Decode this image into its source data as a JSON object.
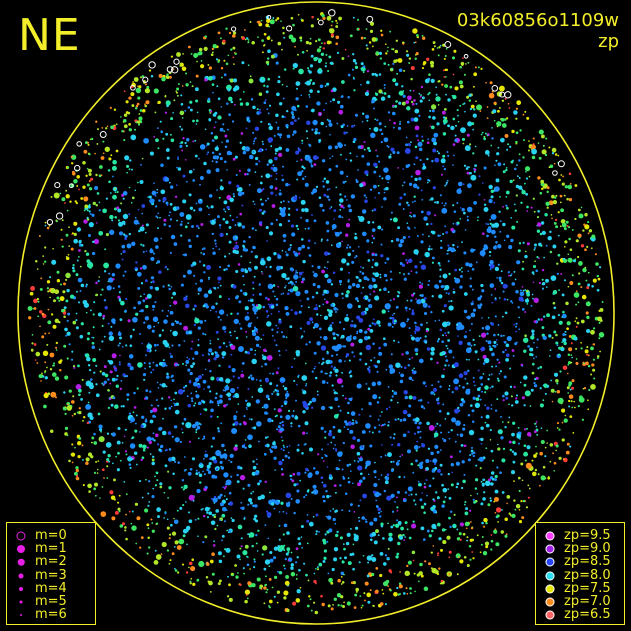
{
  "figure": {
    "corner_label": "NE",
    "exposure_id": "03k60856o1109w",
    "mode_label": "zp",
    "colors": {
      "frame": "#f2ee2a",
      "background": "#000000"
    }
  },
  "magnitude_legend": {
    "items": [
      {
        "label": "m=0",
        "hollow": true,
        "color": "#e61ee6"
      },
      {
        "label": "m=1",
        "hollow": false,
        "color": "#e61ee6"
      },
      {
        "label": "m=2",
        "hollow": false,
        "color": "#e61ee6"
      },
      {
        "label": "m=3",
        "hollow": false,
        "color": "#e61ee6"
      },
      {
        "label": "m=4",
        "hollow": false,
        "color": "#e61ee6"
      },
      {
        "label": "m=5",
        "hollow": false,
        "color": "#e61ee6"
      },
      {
        "label": "m=6",
        "hollow": false,
        "color": "#e61ee6"
      }
    ]
  },
  "zp_legend": {
    "items": [
      {
        "label": "zp=9.5",
        "color": "#ff3cff"
      },
      {
        "label": "zp=9.0",
        "color": "#a01ee6"
      },
      {
        "label": "zp=8.5",
        "color": "#2846ff"
      },
      {
        "label": "zp=8.0",
        "color": "#28dcf0"
      },
      {
        "label": "zp=7.5",
        "color": "#e6e600"
      },
      {
        "label": "zp=7.0",
        "color": "#ff8c1e"
      },
      {
        "label": "zp=6.5",
        "color": "#ff6464"
      }
    ]
  }
}
